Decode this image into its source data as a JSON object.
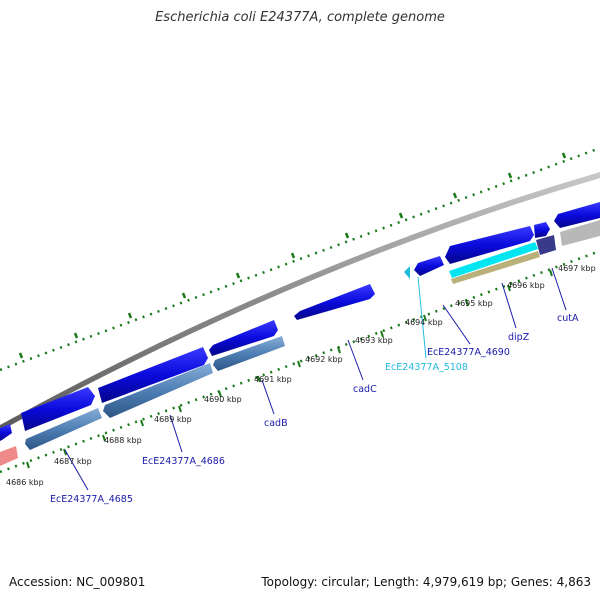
{
  "title": "Escherichia coli E24377A, complete genome",
  "footer": {
    "accession": "Accession: NC_009801",
    "stats": "Topology: circular; Length: 4,979,619 bp; Genes: 4,863"
  },
  "colors": {
    "backbone": "#8a8a8a",
    "tick": "#1a7a1a",
    "gene_forward": "#0a0adc",
    "gene_reverse": "#4f7fb5",
    "label_default": "#1a1aaa",
    "label_highlight": "#22bbe0",
    "cyan_feature": "#00e6f0",
    "khaki_feature": "#b9b07a",
    "dark_feature": "#3a3a8a",
    "grey_feature": "#b8b8b8",
    "pink_feature": "#ef8a8a"
  },
  "scale_labels": [
    {
      "kbp": 4686,
      "text": "4686 kbp"
    },
    {
      "kbp": 4687,
      "text": "4687 kbp"
    },
    {
      "kbp": 4688,
      "text": "4688 kbp"
    },
    {
      "kbp": 4689,
      "text": "4689 kbp"
    },
    {
      "kbp": 4690,
      "text": "4690 kbp"
    },
    {
      "kbp": 4691,
      "text": "4691 kbp"
    },
    {
      "kbp": 4692,
      "text": "4692 kbp"
    },
    {
      "kbp": 4693,
      "text": "4693 kbp"
    },
    {
      "kbp": 4694,
      "text": "4694 kbp"
    },
    {
      "kbp": 4695,
      "text": "4695 kbp"
    },
    {
      "kbp": 4696,
      "text": "4696 kbp"
    },
    {
      "kbp": 4697,
      "text": "4697 kbp"
    }
  ],
  "gene_labels": [
    {
      "name": "EcE24377A_4685",
      "highlight": false
    },
    {
      "name": "EcE24377A_4686",
      "highlight": false
    },
    {
      "name": "cadB",
      "highlight": false
    },
    {
      "name": "cadC",
      "highlight": false
    },
    {
      "name": "EcE24377A_5108",
      "highlight": true
    },
    {
      "name": "EcE24377A_4690",
      "highlight": false
    },
    {
      "name": "dipZ",
      "highlight": false
    },
    {
      "name": "cutA",
      "highlight": false
    }
  ]
}
